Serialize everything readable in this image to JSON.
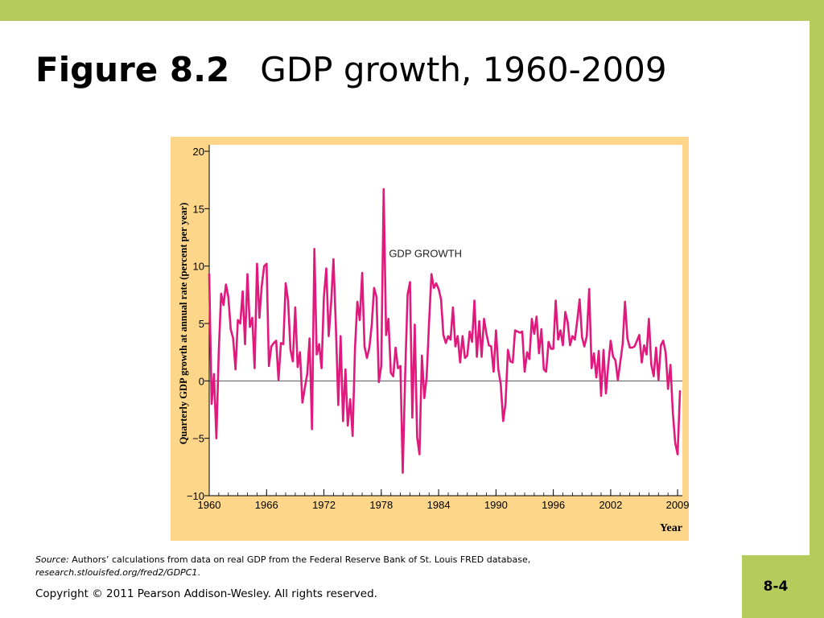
{
  "slide": {
    "figure_label": "Figure 8.2",
    "figure_title": "GDP growth, 1960-2009",
    "source_label": "Source:",
    "source_text": "Authors’ calculations from data on real GDP from the Federal Reserve Bank of St. Louis FRED database,",
    "source_url": "research.stlouisfed.org/fred2/GDPC1",
    "source_url_end": ".",
    "copyright": "Copyright © 2011 Pearson Addison-Wesley. All rights reserved.",
    "page_number": "8-4"
  },
  "colors": {
    "band": "#b5cc5c",
    "chart_background": "#fdd68a",
    "plot_background": "#ffffff",
    "series_line": "#e0197d"
  },
  "chart_data": {
    "type": "line",
    "title": "",
    "xlabel": "Year",
    "ylabel": "Quarterly GDP growth at annual rate (percent per year)",
    "xlim": [
      1960,
      2009.5
    ],
    "ylim": [
      -10,
      20
    ],
    "x_ticks": [
      1960,
      1966,
      1972,
      1978,
      1984,
      1990,
      1996,
      2002,
      2009
    ],
    "y_ticks": [
      -10,
      -5,
      0,
      5,
      10,
      15,
      20
    ],
    "y_tick_labels": [
      "−10",
      "−5",
      "0",
      "5",
      "10",
      "15",
      "20"
    ],
    "zero_line": true,
    "grid": false,
    "annotations": [
      {
        "text": "GDP GROWTH",
        "x": 1978.8,
        "y": 11.2
      }
    ],
    "series": [
      {
        "name": "GDP GROWTH",
        "x": [
          1960.0,
          1960.25,
          1960.5,
          1960.75,
          1961.0,
          1961.25,
          1961.5,
          1961.75,
          1962.0,
          1962.25,
          1962.5,
          1962.75,
          1963.0,
          1963.25,
          1963.5,
          1963.75,
          1964.0,
          1964.25,
          1964.5,
          1964.75,
          1965.0,
          1965.25,
          1965.5,
          1965.75,
          1966.0,
          1966.25,
          1966.5,
          1966.75,
          1967.0,
          1967.25,
          1967.5,
          1967.75,
          1968.0,
          1968.25,
          1968.5,
          1968.75,
          1969.0,
          1969.25,
          1969.5,
          1969.75,
          1970.0,
          1970.25,
          1970.5,
          1970.75,
          1971.0,
          1971.25,
          1971.5,
          1971.75,
          1972.0,
          1972.25,
          1972.5,
          1972.75,
          1973.0,
          1973.25,
          1973.5,
          1973.75,
          1974.0,
          1974.25,
          1974.5,
          1974.75,
          1975.0,
          1975.25,
          1975.5,
          1975.75,
          1976.0,
          1976.25,
          1976.5,
          1976.75,
          1977.0,
          1977.25,
          1977.5,
          1977.75,
          1978.0,
          1978.25,
          1978.5,
          1978.75,
          1979.0,
          1979.25,
          1979.5,
          1979.75,
          1980.0,
          1980.25,
          1980.5,
          1980.75,
          1981.0,
          1981.25,
          1981.5,
          1981.75,
          1982.0,
          1982.25,
          1982.5,
          1982.75,
          1983.0,
          1983.25,
          1983.5,
          1983.75,
          1984.0,
          1984.25,
          1984.5,
          1984.75,
          1985.0,
          1985.25,
          1985.5,
          1985.75,
          1986.0,
          1986.25,
          1986.5,
          1986.75,
          1987.0,
          1987.25,
          1987.5,
          1987.75,
          1988.0,
          1988.25,
          1988.5,
          1988.75,
          1989.0,
          1989.25,
          1989.5,
          1989.75,
          1990.0,
          1990.25,
          1990.5,
          1990.75,
          1991.0,
          1991.25,
          1991.5,
          1991.75,
          1992.0,
          1992.25,
          1992.5,
          1992.75,
          1993.0,
          1993.25,
          1993.5,
          1993.75,
          1994.0,
          1994.25,
          1994.5,
          1994.75,
          1995.0,
          1995.25,
          1995.5,
          1995.75,
          1996.0,
          1996.25,
          1996.5,
          1996.75,
          1997.0,
          1997.25,
          1997.5,
          1997.75,
          1998.0,
          1998.25,
          1998.5,
          1998.75,
          1999.0,
          1999.25,
          1999.5,
          1999.75,
          2000.0,
          2000.25,
          2000.5,
          2000.75,
          2001.0,
          2001.25,
          2001.5,
          2001.75,
          2002.0,
          2002.25,
          2002.5,
          2002.75,
          2003.0,
          2003.25,
          2003.5,
          2003.75,
          2004.0,
          2004.25,
          2004.5,
          2004.75,
          2005.0,
          2005.25,
          2005.5,
          2005.75,
          2006.0,
          2006.25,
          2006.5,
          2006.75,
          2007.0,
          2007.25,
          2007.5,
          2007.75,
          2008.0,
          2008.25,
          2008.5,
          2008.75,
          2009.0,
          2009.25
        ],
        "values": [
          9.3,
          -2.0,
          0.6,
          -5.0,
          2.6,
          7.6,
          6.6,
          8.4,
          7.3,
          4.5,
          3.7,
          1.0,
          5.3,
          5.0,
          7.8,
          3.2,
          9.3,
          4.7,
          5.5,
          1.1,
          10.2,
          5.5,
          8.3,
          10.0,
          10.2,
          1.3,
          3.0,
          3.3,
          3.5,
          0.1,
          3.3,
          3.2,
          8.5,
          7.0,
          2.7,
          1.7,
          6.4,
          1.2,
          2.5,
          -1.9,
          -0.6,
          0.6,
          3.7,
          -4.2,
          11.5,
          2.3,
          3.2,
          1.1,
          7.3,
          9.8,
          3.9,
          6.8,
          10.6,
          4.7,
          -2.1,
          3.9,
          -3.5,
          1.0,
          -3.9,
          -1.6,
          -4.8,
          2.9,
          6.9,
          5.3,
          9.4,
          3.0,
          2.0,
          2.9,
          4.8,
          8.1,
          7.3,
          -0.1,
          1.3,
          16.7,
          4.0,
          5.4,
          0.7,
          0.4,
          2.9,
          1.1,
          1.3,
          -8.0,
          0.5,
          7.5,
          8.6,
          -3.2,
          4.9,
          -4.9,
          -6.4,
          2.2,
          -1.5,
          0.3,
          5.1,
          9.3,
          8.1,
          8.5,
          8.0,
          7.1,
          4.0,
          3.3,
          3.9,
          3.6,
          6.4,
          3.0,
          3.9,
          1.6,
          3.9,
          2.0,
          2.2,
          4.3,
          3.4,
          7.0,
          2.1,
          5.2,
          2.1,
          5.4,
          4.1,
          3.1,
          3.0,
          0.8,
          4.4,
          1.0,
          -0.3,
          -3.5,
          -2.0,
          2.7,
          1.7,
          1.6,
          4.4,
          4.3,
          4.2,
          4.3,
          0.8,
          2.5,
          1.9,
          5.4,
          4.1,
          5.6,
          2.4,
          4.5,
          1.0,
          0.8,
          3.4,
          2.8,
          2.8,
          7.0,
          3.6,
          4.4,
          3.1,
          6.0,
          5.1,
          3.1,
          3.9,
          3.6,
          5.2,
          7.1,
          3.8,
          3.0,
          3.9,
          8.0,
          1.1,
          2.4,
          0.3,
          2.6,
          -1.3,
          2.7,
          -1.1,
          1.4,
          3.5,
          2.1,
          1.8,
          0.1,
          1.6,
          3.2,
          6.9,
          3.7,
          2.9,
          2.9,
          3.0,
          3.5,
          4.0,
          1.6,
          3.1,
          2.3,
          5.4,
          1.4,
          0.4,
          2.9,
          0.1,
          3.1,
          3.5,
          2.5,
          -0.7,
          1.4,
          -2.7,
          -5.4,
          -6.4,
          -0.9
        ]
      }
    ]
  }
}
